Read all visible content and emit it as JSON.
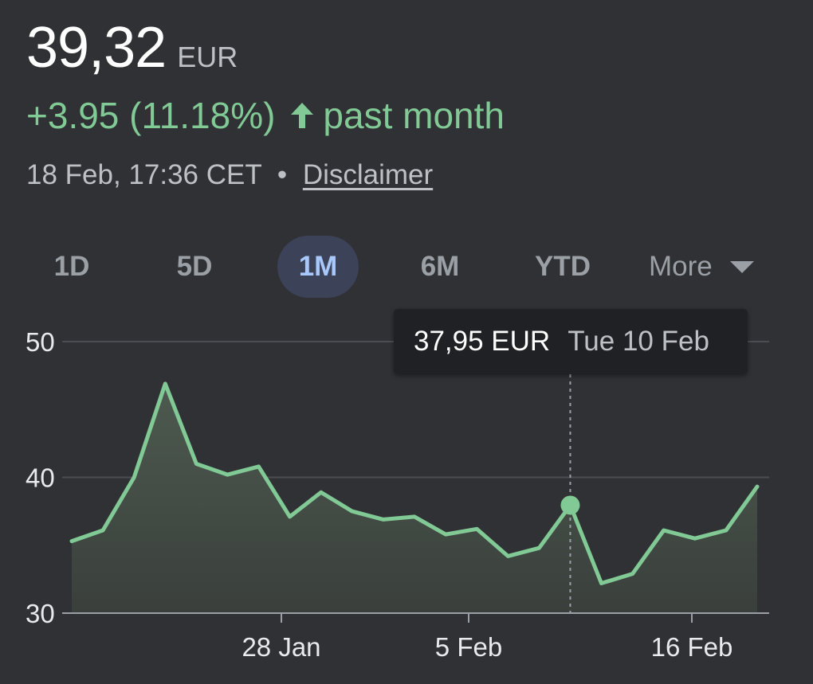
{
  "quote": {
    "price": "39,32",
    "currency": "EUR",
    "change": "+3.95 (11.18%)",
    "change_period": "past month",
    "change_color": "#81c995",
    "timestamp": "18 Feb, 17:36 CET",
    "separator": "•",
    "disclaimer": "Disclaimer"
  },
  "icons": {
    "change": "arrow-up-icon",
    "more": "caret-down-icon"
  },
  "ranges": {
    "items": [
      {
        "label": "1D"
      },
      {
        "label": "5D"
      },
      {
        "label": "1M",
        "active": true
      },
      {
        "label": "6M"
      },
      {
        "label": "YTD"
      }
    ],
    "more_label": "More"
  },
  "tooltip": {
    "value": "37,95 EUR",
    "date": "Tue 10 Feb"
  },
  "chart_data": {
    "type": "area",
    "y_ticks": [
      "50",
      "40",
      "30"
    ],
    "x_ticks": [
      "28 Jan",
      "5 Feb",
      "16 Feb"
    ],
    "ylim": [
      30,
      50
    ],
    "grid": true,
    "line_color": "#81c995",
    "series": [
      {
        "values": [
          35.3,
          36.1,
          40.0,
          46.9,
          41.0,
          40.2,
          40.8,
          37.1,
          38.9,
          37.5,
          36.9,
          37.1,
          35.8,
          36.2,
          34.2,
          34.8,
          37.95,
          32.2,
          32.9,
          36.1,
          35.5,
          36.1,
          39.32
        ]
      }
    ],
    "highlight_index": 16
  }
}
